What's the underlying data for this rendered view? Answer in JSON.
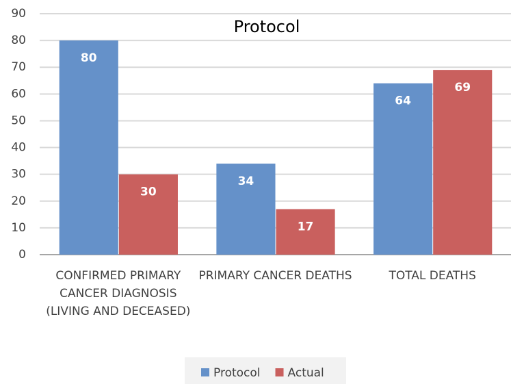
{
  "chart_data": {
    "type": "bar",
    "title": "Protocol",
    "categories": [
      "CONFIRMED PRIMARY CANCER DIAGNOSIS (LIVING AND DECEASED)",
      "PRIMARY CANCER DEATHS",
      "TOTAL DEATHS"
    ],
    "series": [
      {
        "name": "Protocol",
        "color": "#6591c9",
        "values": [
          80,
          34,
          64
        ]
      },
      {
        "name": "Actual",
        "color": "#c9605e",
        "values": [
          30,
          17,
          69
        ]
      }
    ],
    "ylim": [
      0,
      90
    ],
    "yticks": [
      0,
      10,
      20,
      30,
      40,
      50,
      60,
      70,
      80,
      90
    ],
    "grid": true,
    "legend": "bottom"
  }
}
